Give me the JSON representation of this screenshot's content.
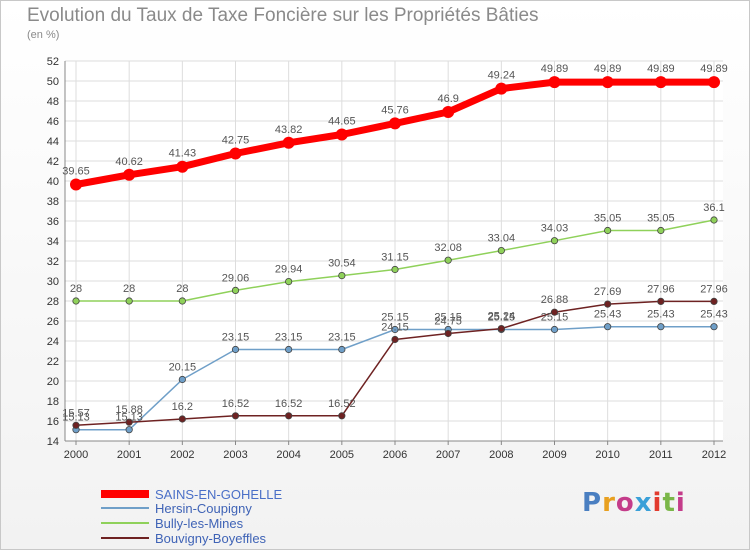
{
  "chart_data": {
    "type": "line",
    "title": "Evolution du Taux de Taxe Foncière sur les Propriétés Bâties",
    "subtitle": "(en %)",
    "xlabel": "",
    "ylabel": "",
    "ylim": [
      14,
      52
    ],
    "yticks": [
      14,
      16,
      18,
      20,
      22,
      24,
      26,
      28,
      30,
      32,
      34,
      36,
      38,
      40,
      42,
      44,
      46,
      48,
      50,
      52
    ],
    "x": [
      "2000",
      "2001",
      "2002",
      "2003",
      "2004",
      "2005",
      "2006",
      "2007",
      "2008",
      "2009",
      "2010",
      "2011",
      "2012"
    ],
    "grid": true,
    "legend_position": "bottom-left",
    "series": [
      {
        "name": "SAINS-EN-GOHELLE",
        "color": "#ff0000",
        "values": [
          39.65,
          40.62,
          41.43,
          42.75,
          43.82,
          44.65,
          45.76,
          46.9,
          49.24,
          49.89,
          49.89,
          49.89,
          49.89
        ],
        "labels": [
          "39.65",
          "40.62",
          "41.43",
          "42.75",
          "43.82",
          "44.65",
          "45.76",
          "46.9",
          "49.24",
          "49.89",
          "49.89",
          "49.89",
          "49.89"
        ]
      },
      {
        "name": "Hersin-Coupigny",
        "color": "#6f9fc8",
        "values": [
          15.13,
          15.13,
          20.15,
          23.15,
          23.15,
          23.15,
          25.15,
          25.15,
          25.15,
          25.15,
          25.43,
          25.43,
          25.43
        ],
        "labels": [
          "15.13",
          "15.13",
          "20.15",
          "23.15",
          "23.15",
          "23.15",
          "25.15",
          "25.15",
          "25.15",
          "25.15",
          "25.43",
          "25.43",
          "25.43"
        ]
      },
      {
        "name": "Bully-les-Mines",
        "color": "#8fd15a",
        "values": [
          28,
          28,
          28,
          29.06,
          29.94,
          30.54,
          31.15,
          32.08,
          33.04,
          34.03,
          35.05,
          35.05,
          36.1
        ],
        "labels": [
          "28",
          "28",
          "28",
          "29.06",
          "29.94",
          "30.54",
          "31.15",
          "32.08",
          "33.04",
          "34.03",
          "35.05",
          "35.05",
          "36.1"
        ]
      },
      {
        "name": "Bouvigny-Boyeffles",
        "color": "#6e2222",
        "values": [
          15.57,
          15.88,
          16.2,
          16.52,
          16.52,
          16.52,
          24.15,
          24.75,
          25.24,
          26.88,
          27.69,
          27.96,
          27.96
        ],
        "labels": [
          "15.57",
          "15.88",
          "16.2",
          "16.52",
          "16.52",
          "16.52",
          "24.15",
          "24.75",
          "25.24",
          "26.88",
          "27.69",
          "27.96",
          "27.96"
        ]
      }
    ]
  },
  "brand": {
    "logo_text": "Proxiti",
    "letter_colors": [
      "#4a7fc1",
      "#e8a020",
      "#c43c8a",
      "#3aa0d8",
      "#e23b2e",
      "#7ab648",
      "#c43c8a"
    ]
  }
}
